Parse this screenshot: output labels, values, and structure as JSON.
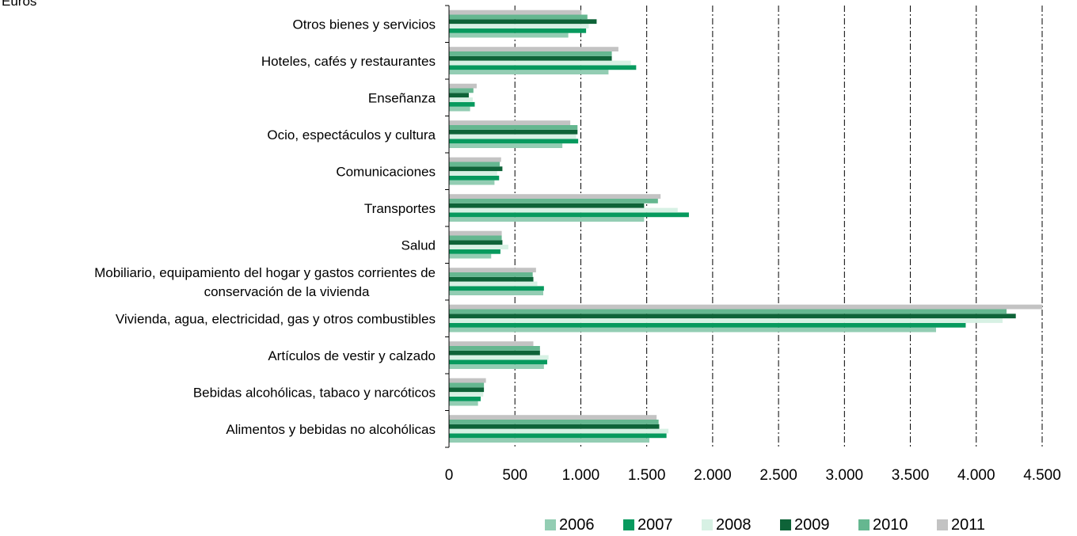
{
  "chart_data": {
    "type": "bar",
    "orientation": "horizontal",
    "unit_label": "Euros",
    "categories": [
      "Otros bienes y servicios",
      "Hoteles, cafés y restaurantes",
      "Enseñanza",
      "Ocio, espectáculos y cultura",
      "Comunicaciones",
      "Transportes",
      "Salud",
      "Mobiliario, equipamiento del hogar y gastos corrientes de conservación de la vivienda",
      "Vivienda, agua, electricidad, gas y otros combustibles",
      "Artículos de vestir y calzado",
      "Bebidas alcohólicas, tabaco y narcóticos",
      "Alimentos y bebidas no alcohólicas"
    ],
    "category_lines": [
      [
        "Otros bienes y servicios"
      ],
      [
        "Hoteles, cafés y restaurantes"
      ],
      [
        "Enseñanza"
      ],
      [
        "Ocio, espectáculos y cultura"
      ],
      [
        "Comunicaciones"
      ],
      [
        "Transportes"
      ],
      [
        "Salud"
      ],
      [
        "Mobiliario, equipamiento del hogar y gastos corrientes de",
        "conservación de la vivienda"
      ],
      [
        "Vivienda, agua, electricidad, gas y otros combustibles"
      ],
      [
        "Artículos de vestir y calzado"
      ],
      [
        "Bebidas alcohólicas, tabaco y narcóticos"
      ],
      [
        "Alimentos y bebidas no alcohólicas"
      ]
    ],
    "series": [
      {
        "name": "2006",
        "color": "#93cdb3",
        "values": [
          905,
          1210,
          160,
          860,
          345,
          1480,
          320,
          715,
          3695,
          720,
          220,
          1520
        ]
      },
      {
        "name": "2007",
        "color": "#079a5e",
        "values": [
          1040,
          1420,
          195,
          980,
          380,
          1820,
          390,
          720,
          3920,
          745,
          240,
          1650
        ]
      },
      {
        "name": "2008",
        "color": "#d7f1e4",
        "values": [
          1060,
          1380,
          180,
          965,
          365,
          1735,
          450,
          670,
          4200,
          755,
          260,
          1665
        ]
      },
      {
        "name": "2009",
        "color": "#0e6338",
        "values": [
          1120,
          1235,
          150,
          975,
          405,
          1480,
          405,
          640,
          4300,
          690,
          265,
          1595
        ]
      },
      {
        "name": "2010",
        "color": "#65b790",
        "values": [
          1050,
          1235,
          185,
          975,
          385,
          1585,
          400,
          635,
          4230,
          690,
          265,
          1590
        ]
      },
      {
        "name": "2011",
        "color": "#c3c3c3",
        "values": [
          1005,
          1285,
          210,
          920,
          395,
          1605,
          400,
          660,
          4500,
          640,
          280,
          1575
        ]
      }
    ],
    "xlim": [
      0,
      4500
    ],
    "xticks": [
      0,
      500,
      1000,
      1500,
      2000,
      2500,
      3000,
      3500,
      4000,
      4500
    ],
    "xtick_labels": [
      "0",
      "500",
      "1.000",
      "1.500",
      "2.000",
      "2.500",
      "3.000",
      "3.500",
      "4.000",
      "4.500"
    ],
    "grid": "vertical dashed",
    "legend_position": "bottom-right"
  }
}
